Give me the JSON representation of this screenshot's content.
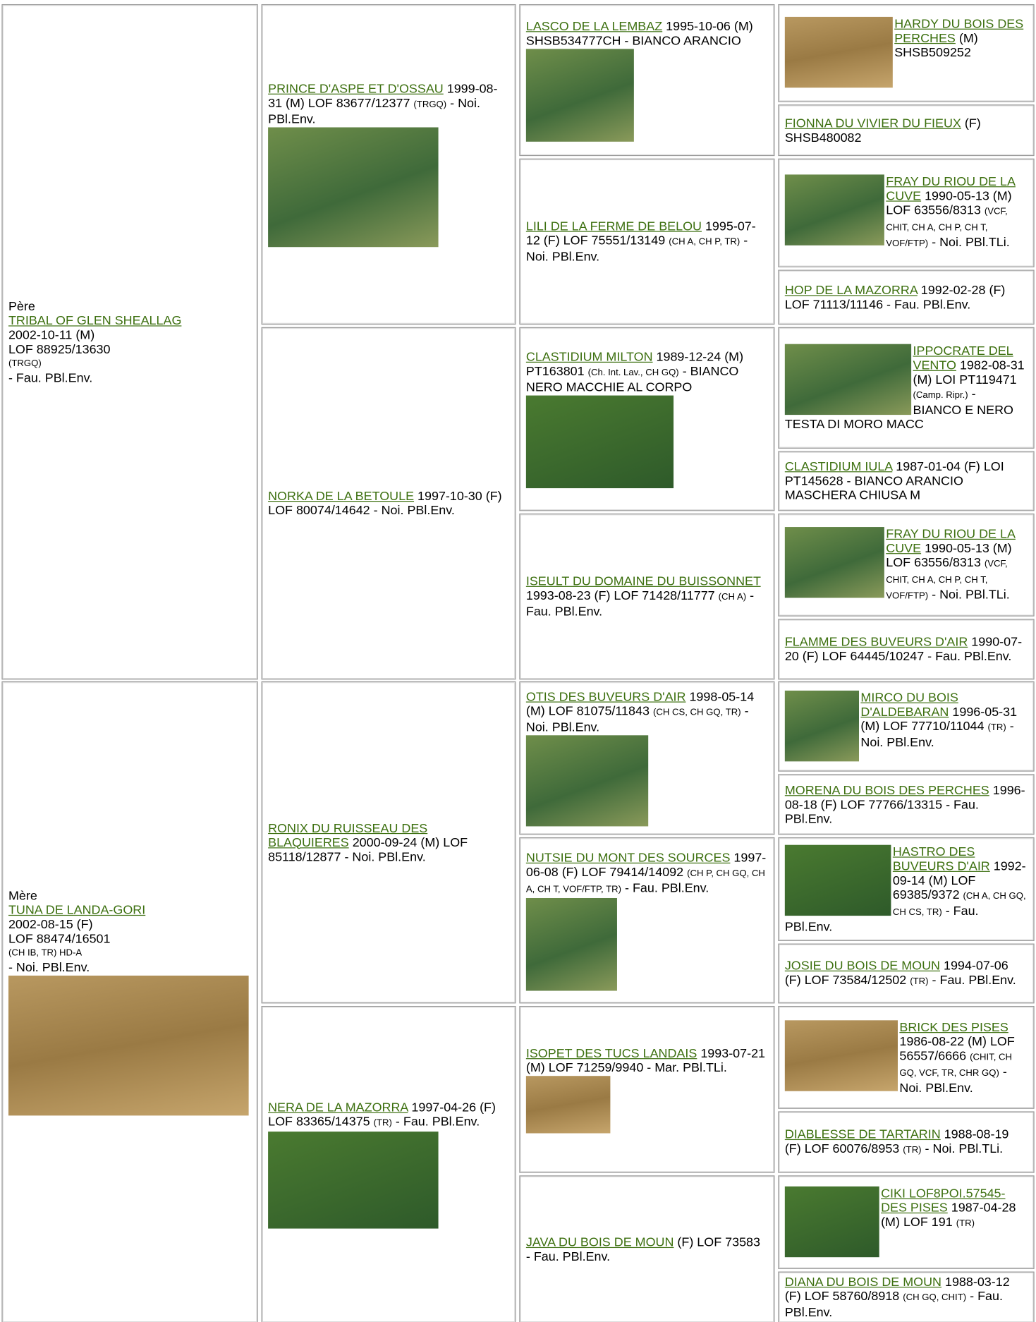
{
  "parents": [
    {
      "label": "Père",
      "name": "TRIBAL OF GLEN SHEALLAG",
      "born": "2002-10-11 (M)",
      "registry": "LOF 88925/13630",
      "titles": "(TRGQ)",
      "rest": "- Fau. PBl.Env."
    },
    {
      "label": "Mère",
      "name": "TUNA DE LANDA-GORI",
      "born": "2002-08-15 (F)",
      "registry": "LOF 88474/16501",
      "titles": "(CH IB, TR) HD-A",
      "rest": "- Noi. PBl.Env."
    }
  ],
  "grandparents": [
    {
      "name": "PRINCE D'ASPE ET D'OSSAU",
      "text": "1999-08-31 (M) LOF 83677/12377",
      "titles": "(TRGQ)",
      "rest": "- Noi. PBl.Env."
    },
    {
      "name": "NORKA DE LA BETOULE",
      "text": "1997-10-30 (F) LOF 80074/14642",
      "rest": "- Noi. PBl.Env."
    },
    {
      "name": "RONIX DU RUISSEAU DES BLAQUIERES",
      "text": "2000-09-24 (M) LOF 85118/12877",
      "rest": "- Noi. PBl.Env."
    },
    {
      "name": "NERA DE LA MAZORRA",
      "text": "1997-04-26 (F) LOF 83365/14375",
      "titles": "(TR)",
      "rest": "- Fau. PBl.Env."
    }
  ],
  "great_grandparents": [
    {
      "name": "LASCO DE LA LEMBAZ",
      "text": "1995-10-06 (M) SHSB534777CH - BIANCO ARANCIO"
    },
    {
      "name": "LILI DE LA FERME DE BELOU",
      "text": "1995-07-12 (F) LOF 75551/13149",
      "titles": "(CH A, CH P, TR)",
      "rest": "- Noi. PBl.Env."
    },
    {
      "name": "CLASTIDIUM MILTON",
      "text": "1989-12-24 (M) PT163801",
      "titles": "(Ch. Int. Lav., CH GQ)",
      "rest": "- BIANCO NERO MACCHIE AL CORPO"
    },
    {
      "name": "ISEULT DU DOMAINE DU BUISSONNET",
      "text": "1993-08-23 (F) LOF 71428/11777",
      "titles": "(CH A)",
      "rest": "- Fau. PBl.Env."
    },
    {
      "name": "OTIS DES BUVEURS D'AIR",
      "text": "1998-05-14 (M) LOF 81075/11843",
      "titles": "(CH CS, CH GQ, TR)",
      "rest": "- Noi. PBl.Env."
    },
    {
      "name": "NUTSIE DU MONT DES SOURCES",
      "text": "1997-06-08 (F) LOF 79414/14092",
      "titles": "(CH P, CH GQ, CH A, CH T, VOF/FTP, TR)",
      "rest": "- Fau. PBl.Env."
    },
    {
      "name": "ISOPET DES TUCS LANDAIS",
      "text": "1993-07-21 (M) LOF 71259/9940 - Mar. PBl.TLi."
    },
    {
      "name": "JAVA DU BOIS DE MOUN",
      "text": "(F) LOF 73583 - Fau. PBl.Env."
    }
  ],
  "great_great_grandparents": [
    {
      "name": "HARDY DU BOIS DES PERCHES",
      "text": "(M) SHSB509252"
    },
    {
      "name": "FIONNA DU VIVIER DU FIEUX",
      "text": "(F) SHSB480082"
    },
    {
      "name": "FRAY DU RIOU DE LA CUVE",
      "text": "1990-05-13 (M) LOF 63556/8313",
      "titles": "(VCF, CHIT, CH A, CH P, CH T, VOF/FTP)",
      "rest": "- Noi. PBl.TLi."
    },
    {
      "name": "HOP DE LA MAZORRA",
      "text": "1992-02-28 (F) LOF 71113/11146 - Fau. PBl.Env."
    },
    {
      "name": "IPPOCRATE DEL VENTO",
      "text": "1982-08-31 (M) LOI PT119471",
      "titles": "(Camp. Ripr.)",
      "rest": "- BIANCO E NERO TESTA DI MORO MACC"
    },
    {
      "name": "CLASTIDIUM IULA",
      "text": "1987-01-04 (F) LOI PT145628 - BIANCO ARANCIO MASCHERA CHIUSA M"
    },
    {
      "name": "FRAY DU RIOU DE LA CUVE",
      "text": "1990-05-13 (M) LOF 63556/8313",
      "titles": "(VCF, CHIT, CH A, CH P, CH T, VOF/FTP)",
      "rest": "- Noi. PBl.TLi."
    },
    {
      "name": "FLAMME DES BUVEURS D'AIR",
      "text": "1990-07-20 (F) LOF 64445/10247 - Fau. PBl.Env."
    },
    {
      "name": "MIRCO DU BOIS D'ALDEBARAN",
      "text": "1996-05-31 (M) LOF 77710/11044",
      "titles": "(TR)",
      "rest": "- Noi. PBl.Env."
    },
    {
      "name": "MORENA DU BOIS DES PERCHES",
      "text": "1996-08-18 (F) LOF 77766/13315 - Fau. PBl.Env."
    },
    {
      "name": "HASTRO DES BUVEURS D'AIR",
      "text": "1992-09-14 (M) LOF 69385/9372",
      "titles": "(CH A, CH GQ, CH CS, TR)",
      "rest": "- Fau. PBl.Env."
    },
    {
      "name": "JOSIE DU BOIS DE MOUN",
      "text": "1994-07-06 (F) LOF 73584/12502",
      "titles": "(TR)",
      "rest": "- Fau. PBl.Env."
    },
    {
      "name": "BRICK DES PISES",
      "text": "1986-08-22 (M) LOF 56557/6666",
      "titles": "(CHIT, CH GQ, VCF, TR, CHR GQ)",
      "rest": "- Noi. PBl.Env."
    },
    {
      "name": "DIABLESSE DE TARTARIN",
      "text": "1988-08-19 (F) LOF 60076/8953",
      "titles": "(TR)",
      "rest": "- Noi. PBl.TLi."
    },
    {
      "name": "CIKI LOF8POI.57545-DES PISES",
      "text": "1987-04-28 (M) LOF 191",
      "titles": "(TR)"
    },
    {
      "name": "DIANA DU BOIS DE MOUN",
      "text": "1988-03-12 (F) LOF 58760/8918",
      "titles": "(CH GQ, CHIT)",
      "rest": "- Fau. PBl.Env."
    }
  ]
}
